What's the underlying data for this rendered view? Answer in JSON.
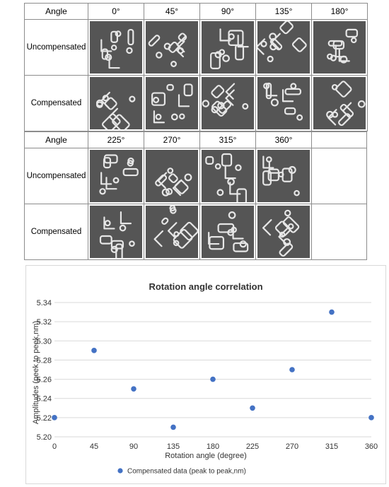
{
  "figure": {
    "top_table": {
      "angle_header": "Angle",
      "angles": [
        "0°",
        "45°",
        "90°",
        "135°",
        "180°"
      ],
      "row_labels": [
        "Uncompensated",
        "Compensated"
      ]
    },
    "bottom_table": {
      "angle_header": "Angle",
      "angles": [
        "225°",
        "270°",
        "315°",
        "360°",
        ""
      ],
      "row_labels": [
        "Uncompensated",
        "Compensated"
      ]
    }
  },
  "chart_data": {
    "type": "scatter",
    "title": "Rotation angle correlation",
    "xlabel": "Rotation angle (degree)",
    "ylabel": "Amplitudes (peek to peek,nm)",
    "x_ticks": [
      0,
      45,
      90,
      135,
      180,
      225,
      270,
      315,
      360
    ],
    "y_ticks": [
      "5.20",
      "5.22",
      "5.24",
      "5.26",
      "5.28",
      "5.30",
      "5.32",
      "5.34"
    ],
    "xlim": [
      0,
      360
    ],
    "ylim": [
      5.2,
      5.34
    ],
    "grid": "horizontal",
    "legend_position": "bottom",
    "series": [
      {
        "name": "Compensated data (peak to peak,nm)",
        "color": "#4472c4",
        "x": [
          0,
          45,
          90,
          135,
          180,
          225,
          270,
          315,
          360
        ],
        "y": [
          5.22,
          5.29,
          5.25,
          5.21,
          5.26,
          5.23,
          5.27,
          5.33,
          5.22
        ]
      }
    ]
  }
}
